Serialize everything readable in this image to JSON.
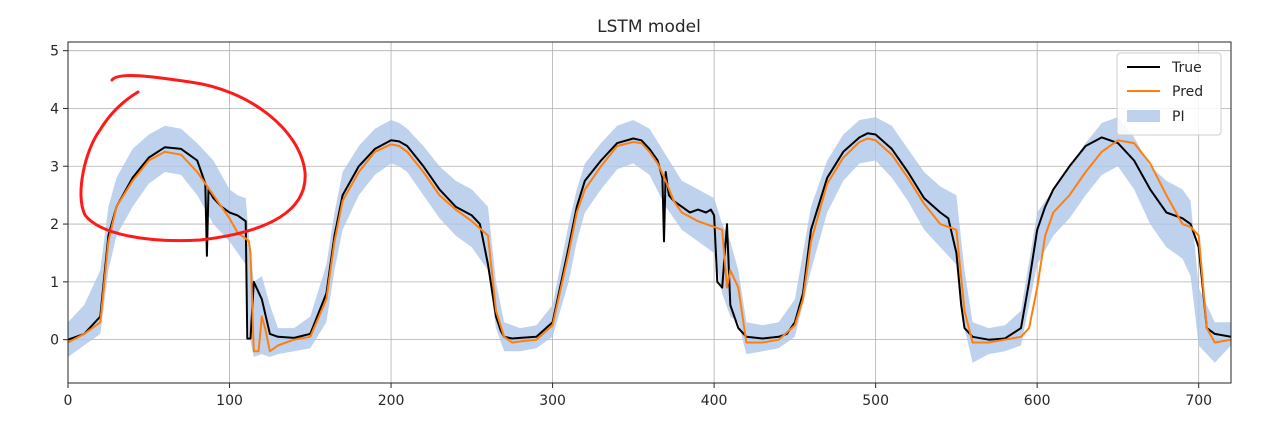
{
  "chart_data": {
    "type": "line",
    "title": "LSTM model",
    "xlabel": "",
    "ylabel": "",
    "xlim": [
      0,
      720
    ],
    "ylim": [
      -0.75,
      5.15
    ],
    "xticks": [
      0,
      100,
      200,
      300,
      400,
      500,
      600,
      700
    ],
    "yticks": [
      0,
      1,
      2,
      3,
      4,
      5
    ],
    "grid": true,
    "legend": {
      "placement": "top-right",
      "entries": [
        "True",
        "Pred",
        "PI"
      ]
    },
    "colors": {
      "true": "#000000",
      "pred": "#ff7f0e",
      "pi": "#aec7e8",
      "annotation": "#ff1a1a"
    },
    "series": [
      {
        "name": "True",
        "x": [
          0,
          10,
          20,
          25,
          30,
          40,
          50,
          60,
          70,
          80,
          85,
          86,
          87,
          90,
          95,
          100,
          105,
          110,
          111,
          113,
          115,
          120,
          125,
          130,
          140,
          150,
          160,
          165,
          170,
          180,
          190,
          200,
          205,
          210,
          220,
          230,
          240,
          250,
          255,
          260,
          265,
          268,
          270,
          275,
          280,
          290,
          300,
          310,
          315,
          320,
          330,
          340,
          350,
          355,
          360,
          365,
          368,
          369,
          370,
          372,
          375,
          380,
          385,
          390,
          395,
          398,
          400,
          402,
          405,
          408,
          410,
          415,
          420,
          430,
          440,
          445,
          450,
          455,
          460,
          470,
          480,
          490,
          495,
          500,
          510,
          520,
          530,
          540,
          545,
          550,
          553,
          555,
          560,
          570,
          580,
          590,
          595,
          600,
          605,
          610,
          620,
          630,
          640,
          650,
          660,
          670,
          680,
          690,
          695,
          700,
          705,
          710,
          720
        ],
        "y": [
          0,
          0.1,
          0.4,
          1.8,
          2.3,
          2.8,
          3.15,
          3.33,
          3.3,
          3.1,
          2.7,
          1.45,
          2.6,
          2.45,
          2.3,
          2.2,
          2.15,
          2.05,
          0.02,
          0.02,
          1,
          0.7,
          0.1,
          0.05,
          0.03,
          0.1,
          0.8,
          1.8,
          2.5,
          3.0,
          3.3,
          3.45,
          3.43,
          3.35,
          3.0,
          2.6,
          2.3,
          2.15,
          2,
          1.3,
          0.4,
          0.15,
          0.05,
          0.02,
          0.03,
          0.05,
          0.3,
          1.6,
          2.3,
          2.75,
          3.1,
          3.4,
          3.48,
          3.45,
          3.3,
          3.1,
          2.8,
          1.7,
          2.9,
          2.5,
          2.4,
          2.3,
          2.2,
          2.25,
          2.2,
          2.25,
          2.15,
          1.0,
          0.9,
          2.0,
          0.6,
          0.2,
          0.05,
          0.02,
          0.05,
          0.1,
          0.3,
          0.8,
          1.9,
          2.8,
          3.25,
          3.5,
          3.57,
          3.55,
          3.3,
          2.9,
          2.45,
          2.2,
          2.1,
          1.5,
          0.6,
          0.2,
          0.05,
          0.0,
          0.02,
          0.2,
          1.0,
          1.9,
          2.3,
          2.6,
          3.0,
          3.35,
          3.5,
          3.4,
          3.1,
          2.6,
          2.2,
          2.1,
          2,
          1.6,
          0.2,
          0.1,
          0.05
        ]
      },
      {
        "name": "Pred",
        "x": [
          0,
          10,
          20,
          25,
          30,
          40,
          50,
          60,
          70,
          80,
          90,
          100,
          105,
          110,
          112,
          113,
          115,
          118,
          120,
          122,
          125,
          130,
          135,
          140,
          150,
          160,
          165,
          170,
          180,
          190,
          200,
          205,
          210,
          220,
          230,
          240,
          250,
          260,
          265,
          270,
          275,
          280,
          290,
          300,
          310,
          315,
          320,
          330,
          340,
          350,
          355,
          360,
          365,
          370,
          375,
          380,
          390,
          400,
          405,
          408,
          410,
          415,
          420,
          430,
          440,
          450,
          455,
          460,
          470,
          480,
          490,
          495,
          500,
          510,
          520,
          530,
          540,
          550,
          555,
          560,
          570,
          580,
          590,
          595,
          600,
          605,
          610,
          620,
          630,
          640,
          650,
          660,
          670,
          680,
          690,
          695,
          700,
          705,
          710,
          720
        ],
        "y": [
          -0.05,
          0.1,
          0.3,
          1.7,
          2.3,
          2.75,
          3.1,
          3.25,
          3.2,
          2.9,
          2.5,
          2.1,
          1.85,
          1.75,
          1.7,
          1.5,
          -0.2,
          -0.2,
          0.4,
          0.2,
          -0.2,
          -0.1,
          -0.05,
          0,
          0.05,
          0.7,
          1.7,
          2.4,
          2.9,
          3.25,
          3.38,
          3.35,
          3.25,
          2.9,
          2.5,
          2.25,
          2.05,
          1.8,
          0.5,
          0.05,
          -0.05,
          -0.03,
          0,
          0.25,
          1.5,
          2.2,
          2.6,
          3.0,
          3.35,
          3.42,
          3.4,
          3.25,
          3.05,
          2.75,
          2.4,
          2.2,
          2.05,
          1.95,
          1.9,
          0.9,
          1.2,
          0.9,
          -0.05,
          -0.05,
          0,
          0.25,
          0.7,
          1.7,
          2.7,
          3.15,
          3.42,
          3.48,
          3.45,
          3.2,
          2.8,
          2.35,
          2.0,
          1.9,
          0.5,
          -0.05,
          -0.05,
          0,
          0.05,
          0.2,
          0.9,
          1.8,
          2.2,
          2.5,
          2.9,
          3.25,
          3.45,
          3.4,
          3.05,
          2.5,
          2.0,
          1.95,
          1.8,
          0.2,
          -0.05,
          0
        ]
      },
      {
        "name": "PI",
        "x": [
          0,
          10,
          20,
          25,
          30,
          40,
          50,
          60,
          70,
          80,
          90,
          100,
          105,
          110,
          112,
          115,
          120,
          125,
          130,
          140,
          150,
          160,
          165,
          170,
          180,
          190,
          200,
          205,
          210,
          220,
          230,
          240,
          250,
          260,
          265,
          270,
          280,
          290,
          300,
          310,
          315,
          320,
          330,
          340,
          350,
          360,
          370,
          380,
          390,
          400,
          405,
          410,
          415,
          420,
          430,
          440,
          450,
          460,
          470,
          480,
          490,
          500,
          510,
          520,
          530,
          540,
          550,
          555,
          560,
          570,
          580,
          590,
          600,
          610,
          620,
          630,
          640,
          650,
          660,
          670,
          680,
          690,
          695,
          700,
          710,
          720
        ],
        "lower": [
          -0.3,
          -0.1,
          0.1,
          1.2,
          1.8,
          2.3,
          2.7,
          2.9,
          2.85,
          2.5,
          2.0,
          1.7,
          1.5,
          1.3,
          0.1,
          -0.3,
          -0.25,
          -0.3,
          -0.25,
          -0.2,
          -0.15,
          0.3,
          1.2,
          1.9,
          2.5,
          2.85,
          3.05,
          3.0,
          2.9,
          2.5,
          2.1,
          1.8,
          1.6,
          1.2,
          0.2,
          -0.2,
          -0.2,
          -0.15,
          0.05,
          1.0,
          1.7,
          2.2,
          2.6,
          2.95,
          3.05,
          2.85,
          2.3,
          1.9,
          1.7,
          1.5,
          0.8,
          0.4,
          0.3,
          -0.25,
          -0.2,
          -0.15,
          0.05,
          1.2,
          2.2,
          2.75,
          3.05,
          3.1,
          2.8,
          2.4,
          1.9,
          1.6,
          1.3,
          0.2,
          -0.4,
          -0.25,
          -0.2,
          -0.1,
          1.3,
          1.8,
          2.1,
          2.5,
          2.85,
          3.0,
          2.6,
          2.0,
          1.6,
          1.4,
          1.1,
          -0.1,
          -0.4,
          -0.1
        ],
        "upper": [
          0.3,
          0.6,
          1.2,
          2.3,
          2.8,
          3.3,
          3.55,
          3.7,
          3.65,
          3.4,
          3.1,
          2.6,
          2.5,
          2.45,
          1.8,
          1.0,
          1.1,
          0.6,
          0.2,
          0.2,
          0.4,
          1.3,
          2.2,
          2.9,
          3.35,
          3.65,
          3.8,
          3.75,
          3.65,
          3.35,
          3.0,
          2.75,
          2.6,
          2.3,
          1.0,
          0.3,
          0.2,
          0.25,
          0.6,
          2.0,
          2.6,
          3.05,
          3.4,
          3.7,
          3.8,
          3.65,
          3.2,
          2.75,
          2.6,
          2.45,
          2.0,
          1.7,
          1.2,
          0.3,
          0.25,
          0.3,
          0.7,
          2.3,
          3.1,
          3.55,
          3.8,
          3.85,
          3.7,
          3.3,
          2.9,
          2.65,
          2.5,
          1.2,
          0.3,
          0.2,
          0.25,
          0.5,
          2.2,
          2.6,
          3.0,
          3.4,
          3.75,
          3.85,
          3.5,
          3.0,
          2.75,
          2.6,
          2.4,
          0.9,
          0.3,
          0.3
        ]
      }
    ]
  }
}
